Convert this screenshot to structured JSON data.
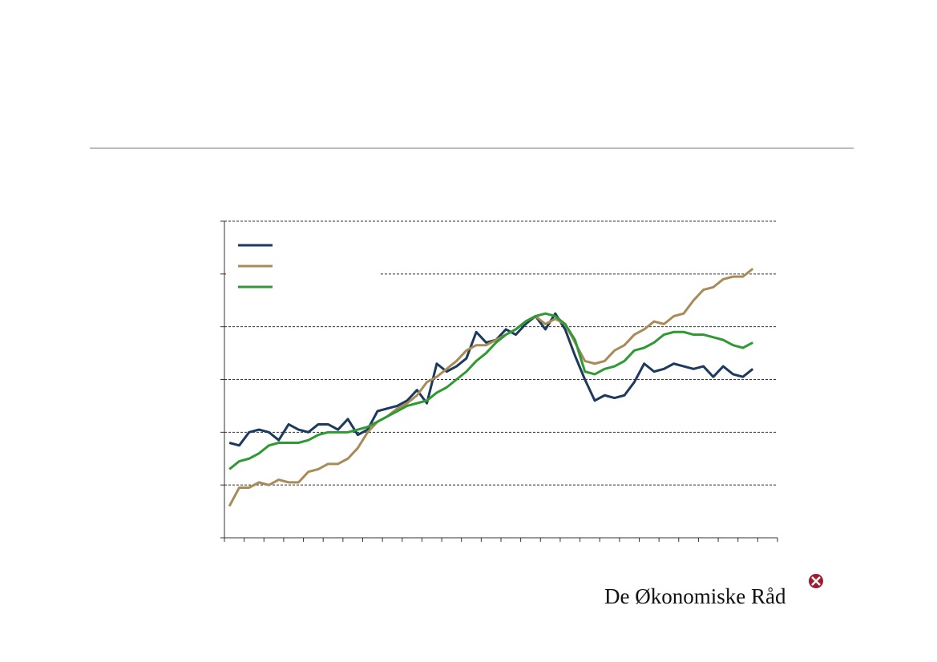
{
  "brand": "De Økonomiske Råd",
  "chart_data": {
    "type": "line",
    "x": [
      0.5,
      1.5,
      2.5,
      3.5,
      4.5,
      5.5,
      6.5,
      7.5,
      8.5,
      9.5,
      10.5,
      11.5,
      12.5,
      13.5,
      14.5,
      15.5,
      16.5,
      17.5,
      18.5,
      19.5,
      20.5,
      21.5,
      22.5,
      23.5,
      24.5,
      25.5,
      26.5,
      27.5,
      28.5,
      29.5,
      30.5,
      31.5,
      32.5,
      33.5,
      34.5,
      35.5,
      36.5,
      37.5,
      38.5,
      39.5,
      40.5,
      41.5,
      42.5,
      43.5,
      44.5,
      45.5,
      46.5,
      47.5,
      48.5,
      49.5,
      50.5,
      51.5,
      52.5,
      53.5
    ],
    "xlim": [
      0,
      56
    ],
    "xticks": [
      0,
      2,
      4,
      6,
      8,
      10,
      12,
      14,
      16,
      18,
      20,
      22,
      24,
      26,
      28,
      30,
      32,
      34,
      36,
      38,
      40,
      42,
      44,
      46,
      48,
      50,
      52,
      54,
      56
    ],
    "ylim": [
      0,
      120
    ],
    "yticks": [
      0,
      20,
      40,
      60,
      80,
      100,
      120
    ],
    "grid": true,
    "series": [
      {
        "color": "#1b3a5e",
        "values": [
          36,
          35,
          40,
          41,
          40,
          37,
          43,
          41,
          40,
          43,
          43,
          41,
          45,
          39,
          41,
          48,
          49,
          50,
          52,
          56,
          51,
          66,
          63,
          65,
          68,
          78,
          74,
          75,
          79,
          77,
          81,
          84,
          79,
          85,
          79,
          69,
          60,
          52,
          54,
          53,
          54,
          59,
          66,
          63,
          64,
          66,
          65,
          64,
          65,
          61,
          65,
          62,
          61,
          64
        ]
      },
      {
        "color": "#a88b57",
        "values": [
          12,
          19,
          19,
          21,
          20,
          22,
          21,
          21,
          25,
          26,
          28,
          28,
          30,
          34,
          40,
          44,
          46,
          49,
          51,
          54,
          59,
          61,
          64,
          67,
          71,
          73,
          73,
          75,
          77,
          79,
          82,
          84,
          81,
          83,
          81,
          74,
          67,
          66,
          67,
          71,
          73,
          77,
          79,
          82,
          81,
          84,
          85,
          90,
          94,
          95,
          98,
          99,
          99,
          102
        ]
      },
      {
        "color": "#2f9a33",
        "values": [
          26,
          29,
          30,
          32,
          35,
          36,
          36,
          36,
          37,
          39,
          40,
          40,
          40,
          41,
          42,
          44,
          46,
          48,
          50,
          51,
          52,
          55,
          57,
          60,
          63,
          67,
          70,
          74,
          77,
          79,
          82,
          84,
          85,
          84,
          81,
          75,
          63,
          62,
          64,
          65,
          67,
          71,
          72,
          74,
          77,
          78,
          78,
          77,
          77,
          76,
          75,
          73,
          72,
          74
        ]
      }
    ]
  }
}
